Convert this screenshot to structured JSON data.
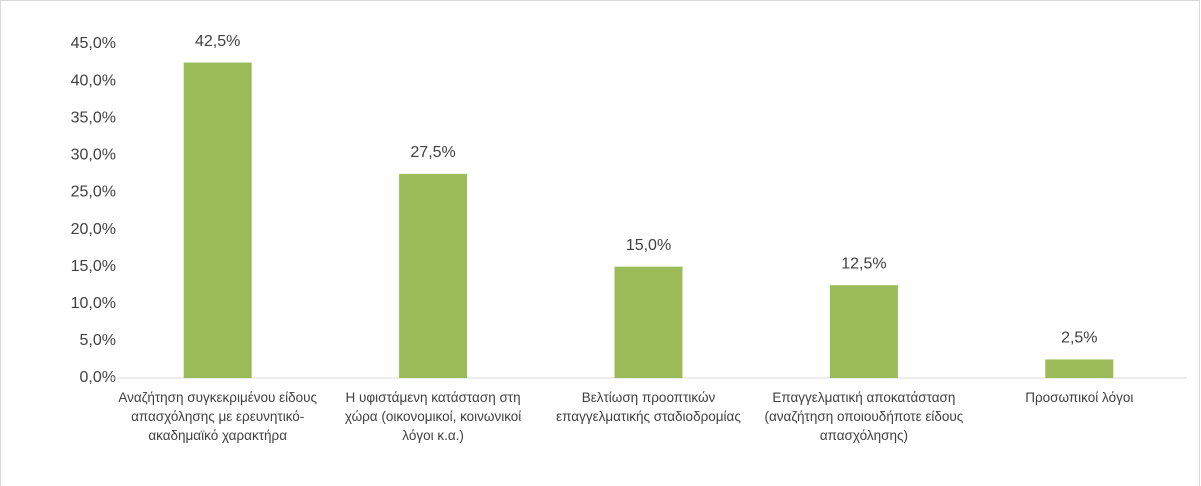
{
  "chart_data": {
    "type": "bar",
    "categories": [
      "Αναζήτηση συγκεκριμένου είδους απασχόλησης με ερευνητικό-ακαδημαϊκό χαρακτήρα",
      "Η υφιστάμενη κατάσταση στη χώρα (οικονομικοί, κοινωνικοί λόγοι κ.α.)",
      "Βελτίωση προοπτικών επαγγελματικής σταδιοδρομίας",
      "Επαγγελματική αποκατάσταση (αναζήτηση οποιουδήποτε είδους απασχόλησης)",
      "Προσωπικοί λόγοι"
    ],
    "values": [
      42.5,
      27.5,
      15.0,
      12.5,
      2.5
    ],
    "value_labels": [
      "42,5%",
      "27,5%",
      "15,0%",
      "12,5%",
      "2,5%"
    ],
    "color": "#9bbb59",
    "ylim": [
      0,
      45
    ],
    "yticks": [
      {
        "value": 0,
        "label": "0,0%"
      },
      {
        "value": 5,
        "label": "5,0%"
      },
      {
        "value": 10,
        "label": "10,0%"
      },
      {
        "value": 15,
        "label": "15,0%"
      },
      {
        "value": 20,
        "label": "20,0%"
      },
      {
        "value": 25,
        "label": "25,0%"
      },
      {
        "value": 30,
        "label": "30,0%"
      },
      {
        "value": 35,
        "label": "35,0%"
      },
      {
        "value": 40,
        "label": "40,0%"
      },
      {
        "value": 45,
        "label": "45,0%"
      }
    ],
    "grid": false
  }
}
